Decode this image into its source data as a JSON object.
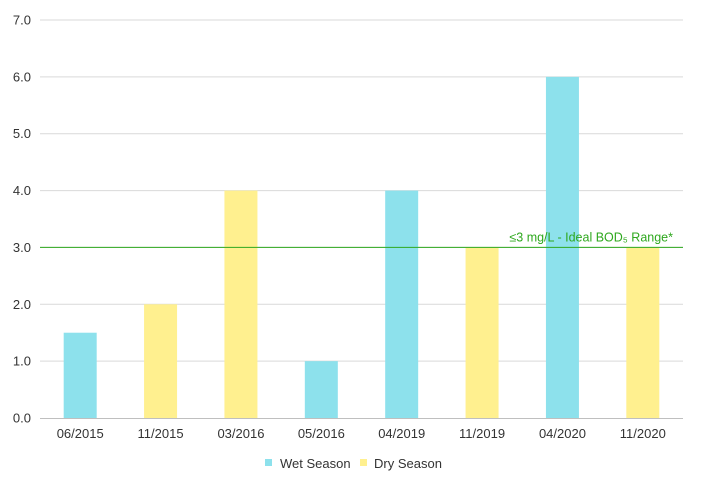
{
  "chart_data": {
    "type": "bar",
    "categories": [
      "06/2015",
      "11/2015",
      "03/2016",
      "05/2016",
      "04/2019",
      "11/2019",
      "04/2020",
      "11/2020"
    ],
    "values": [
      1.5,
      2.0,
      4.0,
      1.0,
      4.0,
      3.0,
      6.0,
      3.0
    ],
    "bar_series": [
      "Wet Season",
      "Dry Season",
      "Dry Season",
      "Wet Season",
      "Wet Season",
      "Dry Season",
      "Wet Season",
      "Dry Season"
    ],
    "series": [
      {
        "name": "Wet Season",
        "color": "#8de1ec"
      },
      {
        "name": "Dry Season",
        "color": "#fff08f"
      }
    ],
    "y_ticks": [
      "0.0",
      "1.0",
      "2.0",
      "3.0",
      "4.0",
      "5.0",
      "6.0",
      "7.0"
    ],
    "ylim": [
      0,
      7
    ],
    "grid": true,
    "legend_position": "bottom",
    "reference_line": {
      "value": 3.0,
      "label": "≤3 mg/L - Ideal BOD₅ Range*",
      "color": "#2ea81e"
    },
    "title": "",
    "xlabel": "",
    "ylabel": ""
  }
}
